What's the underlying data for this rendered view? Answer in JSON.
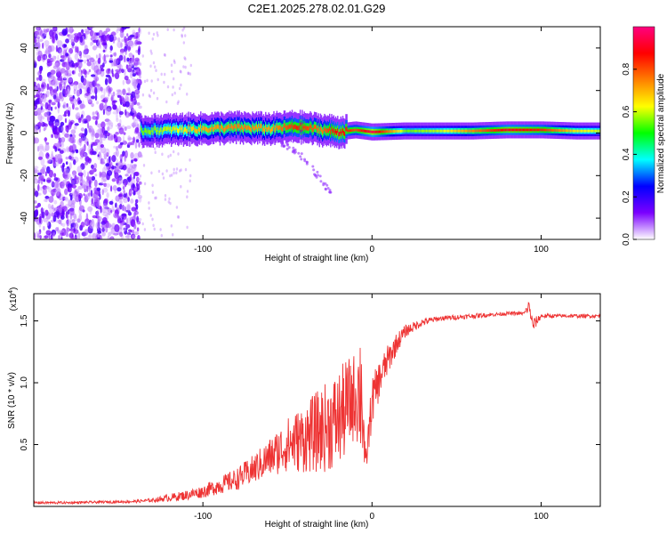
{
  "chart_data": [
    {
      "type": "heatmap",
      "title": "C2E1.2025.278.02.01.G29",
      "xlabel": "Height of straight line (km)",
      "ylabel": "Frequency (Hz)",
      "xlim": [
        -200,
        135
      ],
      "ylim": [
        -50,
        50
      ],
      "xticks": [
        -100,
        0,
        100
      ],
      "xtick_labels": [
        "-100",
        "0",
        "100"
      ],
      "yticks": [
        -40,
        -20,
        0,
        20,
        40
      ],
      "ytick_labels": [
        "-40",
        "-20",
        "0",
        "20",
        "40"
      ],
      "colorbar": {
        "label": "Normalized spectral amplitude",
        "range": [
          0,
          1
        ],
        "ticks": [
          0,
          0.2,
          0.4,
          0.6,
          0.8
        ],
        "tick_labels": [
          "0.0",
          "0.2",
          "0.4",
          "0.6",
          "0.8"
        ],
        "colors": [
          "#ffffff",
          "#7b00ff",
          "#0000ff",
          "#00ffff",
          "#00ff00",
          "#ffff00",
          "#ff7f00",
          "#ff0000",
          "#ff0080"
        ]
      },
      "noise_region_x": [
        -200,
        -137
      ],
      "signal_trace": {
        "x": [
          -137,
          -120,
          -100,
          -80,
          -60,
          -45,
          -30,
          -20,
          -10,
          0,
          20,
          40,
          60,
          80,
          100,
          120,
          135
        ],
        "center_freq": [
          1,
          1.5,
          2,
          2.5,
          2,
          3,
          1.5,
          0.5,
          1.5,
          0.5,
          1,
          1,
          1,
          1.5,
          1.5,
          1,
          1
        ],
        "peak_amplitude": [
          0.55,
          0.6,
          0.7,
          0.75,
          0.7,
          0.85,
          0.75,
          0.9,
          0.8,
          0.95,
          0.55,
          0.6,
          0.75,
          0.9,
          0.85,
          0.65,
          0.6
        ]
      },
      "secondary_branch": {
        "x": [
          -60,
          -50,
          -40,
          -30,
          -24
        ],
        "freq": [
          -2,
          -6,
          -12,
          -22,
          -29
        ]
      }
    },
    {
      "type": "line",
      "xlabel": "Height of straight line (km)",
      "ylabel": "SNR (10 * v/v)",
      "y_multiplier_label": "(x10",
      "y_multiplier_exp": "4",
      "y_multiplier_close": ")",
      "xlim": [
        -200,
        135
      ],
      "ylim": [
        0,
        1.72
      ],
      "xticks": [
        -100,
        0,
        100
      ],
      "xtick_labels": [
        "-100",
        "0",
        "100"
      ],
      "yticks": [
        0.5,
        1.0,
        1.5
      ],
      "ytick_labels": [
        "0.5",
        "1.0",
        "1.5"
      ],
      "series": [
        {
          "name": "SNR",
          "color": "#ee3333",
          "x": [
            -200,
            -180,
            -160,
            -140,
            -130,
            -120,
            -110,
            -100,
            -90,
            -80,
            -70,
            -60,
            -50,
            -40,
            -30,
            -20,
            -15,
            -10,
            -6,
            -4,
            0,
            5,
            10,
            15,
            20,
            30,
            40,
            50,
            60,
            70,
            80,
            90,
            93,
            95,
            100,
            110,
            120,
            135
          ],
          "y": [
            0.03,
            0.03,
            0.035,
            0.04,
            0.05,
            0.07,
            0.09,
            0.12,
            0.17,
            0.22,
            0.3,
            0.4,
            0.5,
            0.55,
            0.62,
            0.7,
            0.8,
            0.9,
            0.95,
            0.3,
            0.85,
            1.05,
            1.2,
            1.33,
            1.42,
            1.49,
            1.52,
            1.53,
            1.54,
            1.55,
            1.56,
            1.56,
            1.62,
            1.46,
            1.54,
            1.54,
            1.54,
            1.54
          ],
          "noise_amplitude": [
            0.01,
            0.01,
            0.01,
            0.012,
            0.015,
            0.03,
            0.04,
            0.05,
            0.07,
            0.09,
            0.12,
            0.16,
            0.22,
            0.28,
            0.35,
            0.4,
            0.4,
            0.35,
            0.6,
            0.1,
            0.2,
            0.15,
            0.12,
            0.08,
            0.05,
            0.03,
            0.02,
            0.02,
            0.02,
            0.015,
            0.015,
            0.015,
            0.06,
            0.06,
            0.02,
            0.015,
            0.015,
            0.015
          ]
        }
      ]
    }
  ]
}
